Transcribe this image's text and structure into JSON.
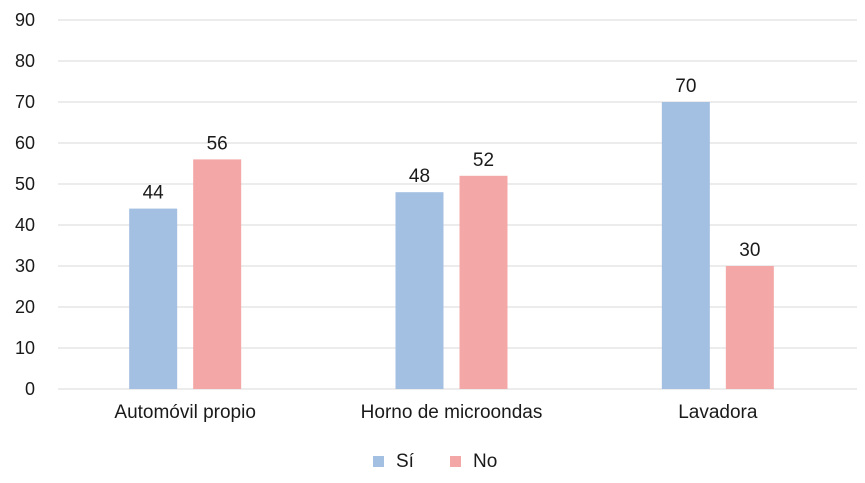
{
  "chart_data": {
    "type": "bar",
    "categories": [
      "Automóvil propio",
      "Horno de microondas",
      "Lavadora"
    ],
    "series": [
      {
        "name": "Sí",
        "values": [
          44,
          48,
          70
        ],
        "labels": [
          "44",
          "48",
          "70"
        ],
        "color": "#a3bfe2"
      },
      {
        "name": "No",
        "values": [
          56,
          52,
          30
        ],
        "labels": [
          "56",
          "52",
          "30"
        ],
        "color": "#f4a7a7"
      }
    ],
    "title": "",
    "xlabel": "",
    "ylabel": "",
    "ylim": [
      0,
      90
    ],
    "yticks": [
      0,
      10,
      20,
      30,
      40,
      50,
      60,
      70,
      80,
      90
    ],
    "grid": true,
    "legend_position": "bottom"
  }
}
